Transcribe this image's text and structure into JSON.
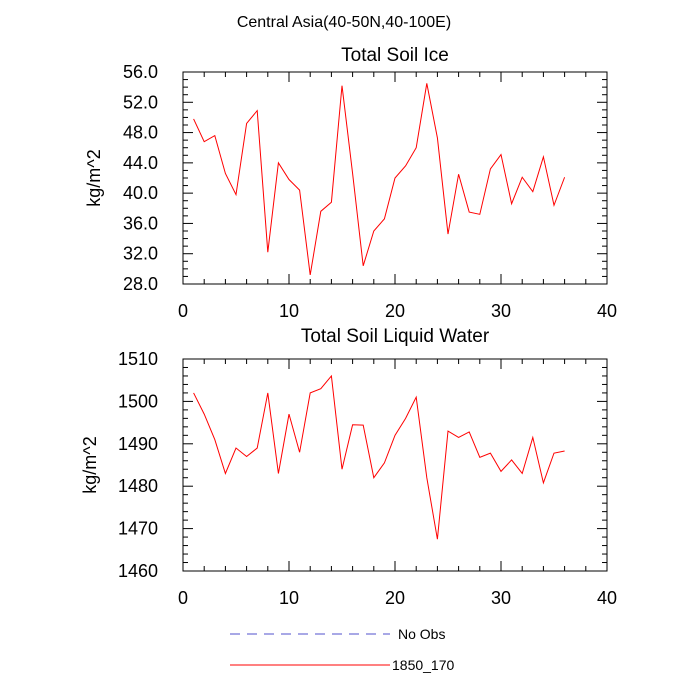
{
  "figure": {
    "suptitle": "Central Asia(40-50N,40-100E)"
  },
  "legend": {
    "entries": [
      {
        "label": "No Obs",
        "color": "#5050cc",
        "style": "dashed"
      },
      {
        "label": "1850_170",
        "color": "#ff0000",
        "style": "solid"
      }
    ]
  },
  "chart_data": [
    {
      "type": "line",
      "title": "Total Soil Ice",
      "xlabel": "",
      "ylabel": "kg/m^2",
      "xlim": [
        0,
        40
      ],
      "ylim": [
        28,
        56
      ],
      "xticks": [
        0,
        10,
        20,
        30,
        40
      ],
      "xtick_labels": [
        "0",
        "10",
        "20",
        "30",
        "40"
      ],
      "yticks": [
        28,
        32,
        36,
        40,
        44,
        48,
        52,
        56
      ],
      "ytick_labels": [
        "28.0",
        "32.0",
        "36.0",
        "40.0",
        "44.0",
        "48.0",
        "52.0",
        "56.0"
      ],
      "series": [
        {
          "name": "1850_170",
          "color": "#ff0000",
          "x": [
            1,
            2,
            3,
            4,
            5,
            6,
            7,
            8,
            9,
            10,
            11,
            12,
            13,
            14,
            15,
            16,
            17,
            18,
            19,
            20,
            21,
            22,
            23,
            24,
            25,
            26,
            27,
            28,
            29,
            30,
            31,
            32,
            33,
            34,
            35,
            36
          ],
          "values": [
            49.8,
            46.8,
            47.6,
            42.6,
            39.8,
            49.2,
            50.9,
            32.2,
            44.0,
            41.8,
            40.4,
            29.2,
            37.6,
            38.8,
            54.2,
            42.6,
            30.4,
            35.0,
            36.6,
            42.0,
            43.6,
            46.0,
            54.5,
            47.3,
            34.6,
            42.5,
            37.5,
            37.2,
            43.2,
            45.1,
            38.6,
            42.1,
            40.2,
            44.8,
            38.4,
            42.1
          ]
        }
      ]
    },
    {
      "type": "line",
      "title": "Total Soil Liquid Water",
      "xlabel": "",
      "ylabel": "kg/m^2",
      "xlim": [
        0,
        40
      ],
      "ylim": [
        1460,
        1510
      ],
      "xticks": [
        0,
        10,
        20,
        30,
        40
      ],
      "xtick_labels": [
        "0",
        "10",
        "20",
        "30",
        "40"
      ],
      "yticks": [
        1460,
        1470,
        1480,
        1490,
        1500,
        1510
      ],
      "ytick_labels": [
        "1460",
        "1470",
        "1480",
        "1490",
        "1500",
        "1510"
      ],
      "series": [
        {
          "name": "1850_170",
          "color": "#ff0000",
          "x": [
            1,
            2,
            3,
            4,
            5,
            6,
            7,
            8,
            9,
            10,
            11,
            12,
            13,
            14,
            15,
            16,
            17,
            18,
            19,
            20,
            21,
            22,
            23,
            24,
            25,
            26,
            27,
            28,
            29,
            30,
            31,
            32,
            33,
            34,
            35,
            36
          ],
          "values": [
            1502,
            1497,
            1491,
            1483,
            1489,
            1487,
            1489,
            1502,
            1483,
            1497,
            1488,
            1502,
            1503,
            1506,
            1484,
            1494.5,
            1494.4,
            1482,
            1485.5,
            1492,
            1496,
            1501,
            1482,
            1467.5,
            1493,
            1491.5,
            1492.8,
            1486.8,
            1487.8,
            1483.5,
            1486.2,
            1483,
            1491.5,
            1480.8,
            1487.8,
            1488.3
          ]
        }
      ]
    }
  ]
}
